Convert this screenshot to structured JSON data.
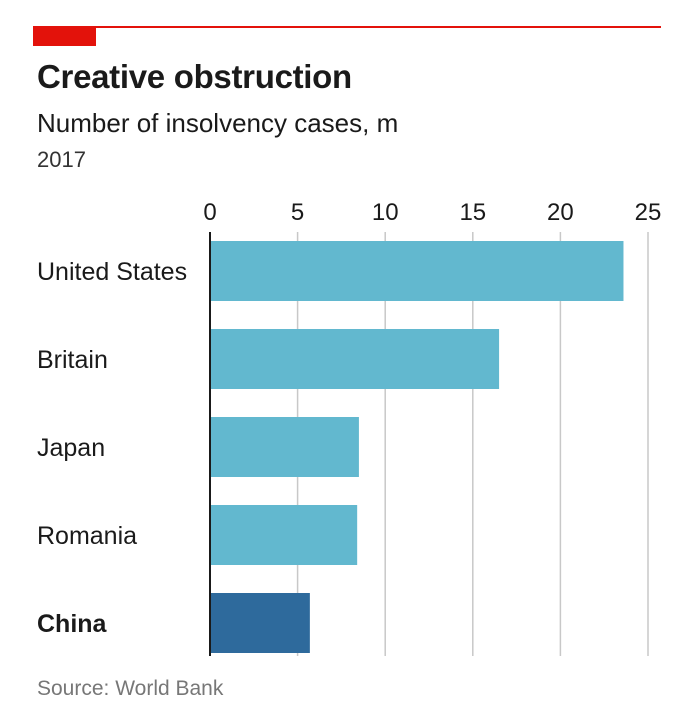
{
  "header": {
    "title": "Creative obstruction",
    "subtitle": "Number of insolvency cases, m",
    "year": "2017"
  },
  "footer": {
    "source": "Source: World Bank"
  },
  "colors": {
    "accent": "#e3120b",
    "bar": "#62b8cf",
    "highlight": "#2e6a9c",
    "grid": "#c8c8c8"
  },
  "chart_data": {
    "type": "bar",
    "orientation": "horizontal",
    "title": "Creative obstruction",
    "subtitle": "Number of insolvency cases, m",
    "xlim": [
      0,
      25
    ],
    "ticks": [
      0,
      5,
      10,
      15,
      20,
      25
    ],
    "tick_labels": [
      "0",
      "5",
      "10",
      "15",
      "20",
      "25"
    ],
    "grid": true,
    "categories": [
      "United States",
      "Britain",
      "Japan",
      "Romania",
      "China"
    ],
    "values": [
      23.6,
      16.5,
      8.5,
      8.4,
      5.7
    ],
    "highlighted": [
      "China"
    ]
  }
}
